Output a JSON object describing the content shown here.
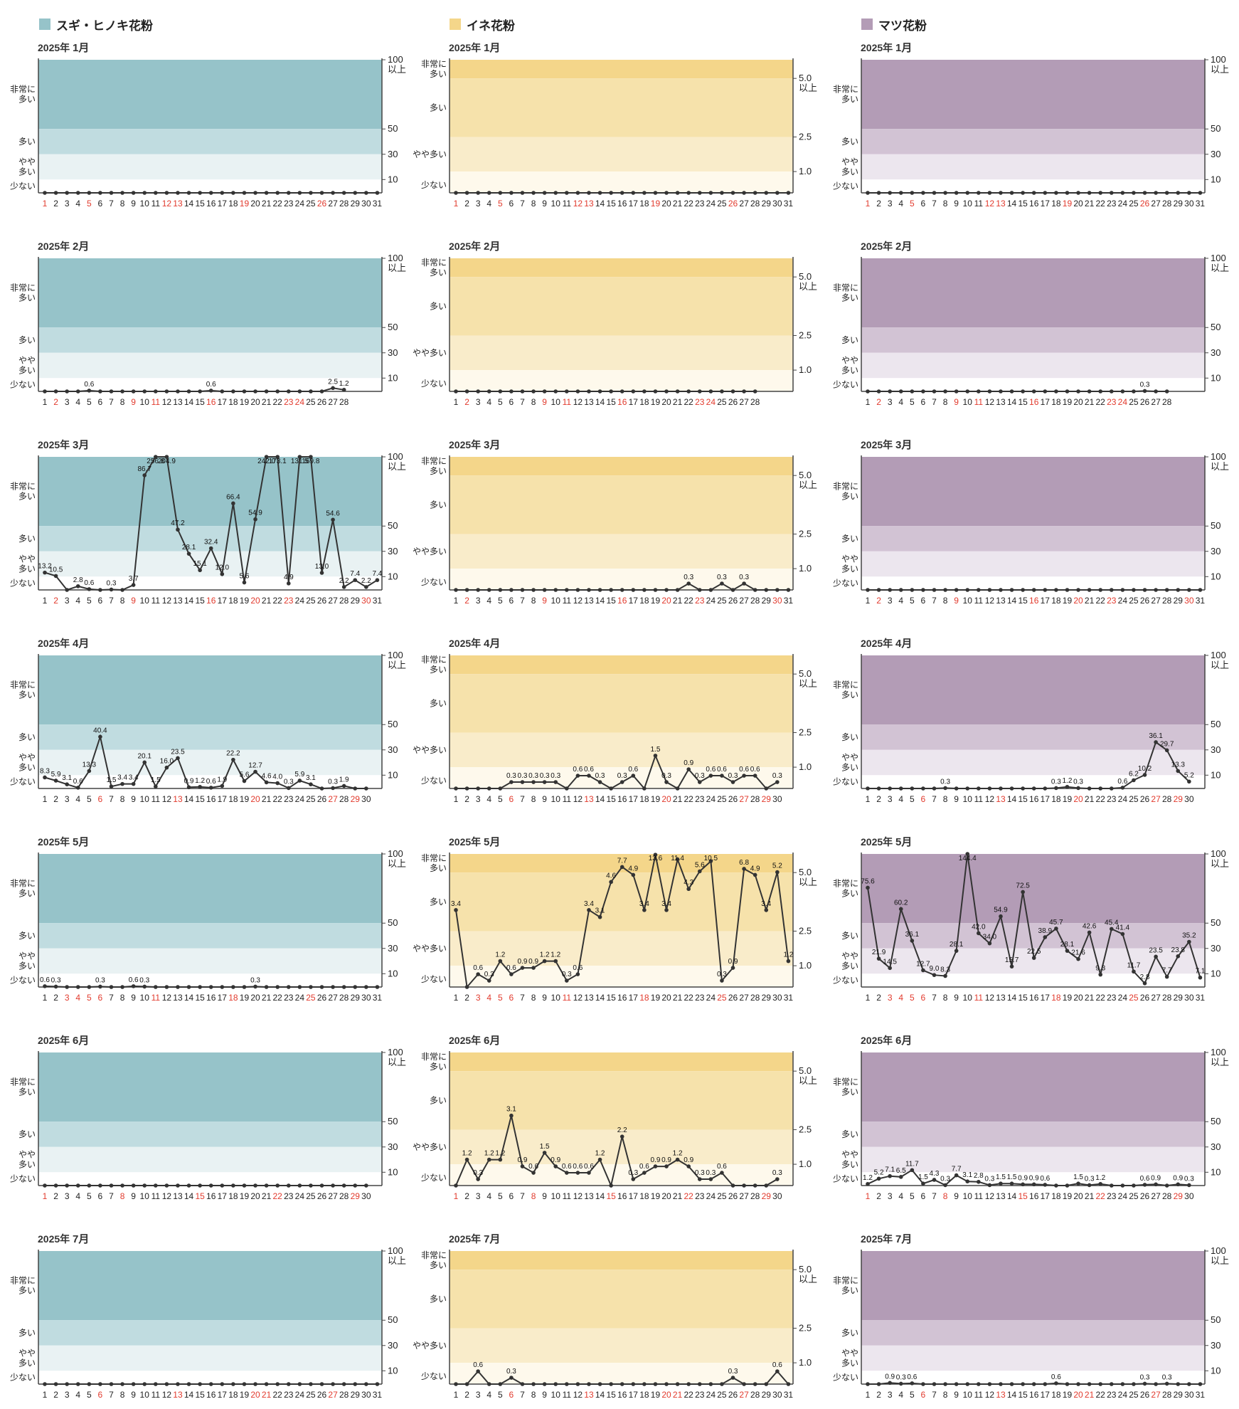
{
  "headers": [
    "スギ・ヒノキ花粉",
    "イネ花粉",
    "マツ花粉"
  ],
  "year_label": "2025年",
  "months": [
    "1月",
    "2月",
    "3月",
    "4月",
    "5月",
    "6月",
    "7月"
  ],
  "levels": {
    "sugi": [
      "非常に\n多い",
      "多い",
      "やや\n多い",
      "少ない"
    ],
    "ine": [
      "非常に\n多い",
      "多い",
      "やや多い",
      "少ない"
    ],
    "matsu": [
      "非常に\n多い",
      "多い",
      "やや\n多い",
      "少ない"
    ]
  },
  "right_ticks": {
    "sugi": [
      {
        "v": 100,
        "t": "100\n以上"
      },
      {
        "v": 50,
        "t": "50"
      },
      {
        "v": 30,
        "t": "30"
      },
      {
        "v": 10,
        "t": "10"
      }
    ],
    "ine": [
      {
        "v": 5.0,
        "t": "5.0\n以上"
      },
      {
        "v": 2.5,
        "t": "2.5"
      },
      {
        "v": 1.0,
        "t": "1.0"
      }
    ],
    "matsu": [
      {
        "v": 100,
        "t": "100\n以上"
      },
      {
        "v": 50,
        "t": "50"
      },
      {
        "v": 30,
        "t": "30"
      },
      {
        "v": 10,
        "t": "10"
      }
    ]
  },
  "colors": {
    "sugi": [
      "#96c3c9",
      "#c0dce0",
      "#e9f2f3",
      "#ffffff"
    ],
    "ine": [
      "#f4d68a",
      "#f6e2ab",
      "#f9ecca",
      "#fef9ec"
    ],
    "matsu": [
      "#b39cb6",
      "#d2c3d4",
      "#ece6ee",
      "#ffffff"
    ],
    "holiday": "#e23b2e",
    "line": "#333333"
  },
  "red_days": {
    "1": [
      1,
      5,
      12,
      13,
      19,
      26
    ],
    "2": [
      2,
      9,
      11,
      16,
      23,
      24
    ],
    "3": [
      2,
      9,
      16,
      20,
      23,
      30
    ],
    "4": [
      6,
      13,
      20,
      27,
      29
    ],
    "5": [
      3,
      4,
      5,
      6,
      11,
      18,
      25
    ],
    "6": [
      1,
      8,
      15,
      22,
      29
    ],
    "7": [
      6,
      13,
      20,
      21,
      27
    ]
  },
  "chart_data": [
    {
      "type": "line",
      "series": "スギ・ヒノキ花粉",
      "month": "1月",
      "days": 31,
      "values": [
        0,
        0,
        0,
        0,
        0,
        0,
        0,
        0,
        0,
        0,
        0,
        0,
        0,
        0,
        0,
        0,
        0,
        0,
        0,
        0,
        0,
        0,
        0,
        0,
        0,
        0,
        0,
        0,
        0,
        0,
        0
      ]
    },
    {
      "type": "line",
      "series": "スギ・ヒノキ花粉",
      "month": "2月",
      "days": 28,
      "values": [
        0,
        0,
        0,
        0,
        0.6,
        0,
        0,
        0,
        0,
        0,
        0,
        0,
        0,
        0,
        0,
        0.6,
        0,
        0,
        0,
        0,
        0,
        0,
        0,
        0,
        0,
        0,
        2.5,
        1.2
      ]
    },
    {
      "type": "line",
      "series": "スギ・ヒノキ花粉",
      "month": "3月",
      "days": 31,
      "values": [
        13.2,
        10.5,
        0,
        2.8,
        0.6,
        0,
        0.3,
        0,
        3.7,
        86.7,
        256.8,
        204.9,
        47.2,
        28.1,
        15.1,
        32.4,
        12.0,
        66.4,
        5.6,
        54.9,
        242.0,
        173.1,
        4.9,
        131.5,
        169.8,
        13.0,
        54.6,
        2.2,
        7.4,
        2.2,
        7.4
      ]
    },
    {
      "type": "line",
      "series": "スギ・ヒノキ花粉",
      "month": "4月",
      "days": 30,
      "values": [
        8.3,
        5.9,
        3.1,
        0.6,
        13.3,
        40.4,
        1.5,
        3.4,
        3.4,
        20.1,
        1.5,
        16.0,
        23.5,
        0.9,
        1.2,
        0.6,
        1.9,
        22.2,
        5.6,
        12.7,
        4.6,
        4.0,
        0.3,
        5.9,
        3.1,
        0,
        0.3,
        1.9,
        0,
        0
      ]
    },
    {
      "type": "line",
      "series": "スギ・ヒノキ花粉",
      "month": "5月",
      "days": 31,
      "values": [
        0.6,
        0.3,
        0,
        0,
        0,
        0.3,
        0,
        0,
        0.6,
        0.3,
        0,
        0,
        0,
        0,
        0,
        0,
        0,
        0,
        0,
        0.3,
        0,
        0,
        0,
        0,
        0,
        0,
        0,
        0,
        0,
        0,
        0
      ]
    },
    {
      "type": "line",
      "series": "スギ・ヒノキ花粉",
      "month": "6月",
      "days": 30,
      "values": [
        0,
        0,
        0,
        0,
        0,
        0,
        0,
        0,
        0,
        0,
        0,
        0,
        0,
        0,
        0,
        0,
        0,
        0,
        0,
        0,
        0,
        0,
        0,
        0,
        0,
        0,
        0,
        0,
        0,
        0
      ]
    },
    {
      "type": "line",
      "series": "スギ・ヒノキ花粉",
      "month": "7月",
      "days": 31,
      "values": [
        0,
        0,
        0,
        0,
        0,
        0,
        0,
        0,
        0,
        0,
        0,
        0,
        0,
        0,
        0,
        0,
        0,
        0,
        0,
        0,
        0,
        0,
        0,
        0,
        0,
        0,
        0,
        0,
        0,
        0,
        0
      ]
    },
    {
      "type": "line",
      "series": "イネ花粉",
      "month": "1月",
      "days": 31,
      "values": [
        0,
        0,
        0,
        0,
        0,
        0,
        0,
        0,
        0,
        0,
        0,
        0,
        0,
        0,
        0,
        0,
        0,
        0,
        0,
        0,
        0,
        0,
        0,
        0,
        0,
        0,
        0,
        0,
        0,
        0,
        0
      ]
    },
    {
      "type": "line",
      "series": "イネ花粉",
      "month": "2月",
      "days": 28,
      "values": [
        0,
        0,
        0,
        0,
        0,
        0,
        0,
        0,
        0,
        0,
        0,
        0,
        0,
        0,
        0,
        0,
        0,
        0,
        0,
        0,
        0,
        0,
        0,
        0,
        0,
        0,
        0,
        0
      ]
    },
    {
      "type": "line",
      "series": "イネ花粉",
      "month": "3月",
      "days": 31,
      "values": [
        0,
        0,
        0,
        0,
        0,
        0,
        0,
        0,
        0,
        0,
        0,
        0,
        0,
        0,
        0,
        0,
        0,
        0,
        0,
        0,
        0,
        0.3,
        0,
        0,
        0.3,
        0,
        0.3,
        0,
        0,
        0,
        0
      ]
    },
    {
      "type": "line",
      "series": "イネ花粉",
      "month": "4月",
      "days": 30,
      "values": [
        0,
        0,
        0,
        0,
        0,
        0.3,
        0.3,
        0.3,
        0.3,
        0.3,
        0,
        0.6,
        0.6,
        0.3,
        0,
        0.3,
        0.6,
        0,
        1.5,
        0.3,
        0,
        0.9,
        0.3,
        0.6,
        0.6,
        0.3,
        0.6,
        0.6,
        0,
        0.3
      ]
    },
    {
      "type": "line",
      "series": "イネ花粉",
      "month": "5月",
      "days": 31,
      "values": [
        3.4,
        0,
        0.6,
        0.3,
        1.2,
        0.6,
        0.9,
        0.9,
        1.2,
        1.2,
        0.3,
        0.6,
        3.4,
        3.1,
        4.6,
        7.7,
        4.9,
        3.4,
        13.6,
        3.4,
        11.4,
        4.3,
        5.6,
        10.5,
        0.3,
        0.9,
        6.8,
        4.9,
        3.4,
        5.2,
        1.2
      ]
    },
    {
      "type": "line",
      "series": "イネ花粉",
      "month": "6月",
      "days": 30,
      "values": [
        0,
        1.2,
        0.3,
        1.2,
        1.2,
        3.1,
        0.9,
        0.6,
        1.5,
        0.9,
        0.6,
        0.6,
        0.6,
        1.2,
        0,
        2.2,
        0.3,
        0.6,
        0.9,
        0.9,
        1.2,
        0.9,
        0.3,
        0.3,
        0.6,
        0,
        0,
        0,
        0,
        0.3
      ]
    },
    {
      "type": "line",
      "series": "イネ花粉",
      "month": "7月",
      "days": 31,
      "values": [
        0,
        0,
        0.6,
        0,
        0,
        0.3,
        0,
        0,
        0,
        0,
        0,
        0,
        0,
        0,
        0,
        0,
        0,
        0,
        0,
        0,
        0,
        0,
        0,
        0,
        0,
        0.3,
        0,
        0,
        0,
        0.6,
        0
      ]
    },
    {
      "type": "line",
      "series": "マツ花粉",
      "month": "1月",
      "days": 31,
      "values": [
        0,
        0,
        0,
        0,
        0,
        0,
        0,
        0,
        0,
        0,
        0,
        0,
        0,
        0,
        0,
        0,
        0,
        0,
        0,
        0,
        0,
        0,
        0,
        0,
        0,
        0,
        0,
        0,
        0,
        0,
        0
      ]
    },
    {
      "type": "line",
      "series": "マツ花粉",
      "month": "2月",
      "days": 28,
      "values": [
        0,
        0,
        0,
        0,
        0,
        0,
        0,
        0,
        0,
        0,
        0,
        0,
        0,
        0,
        0,
        0,
        0,
        0,
        0,
        0,
        0,
        0,
        0,
        0,
        0,
        0.3,
        0,
        0
      ]
    },
    {
      "type": "line",
      "series": "マツ花粉",
      "month": "3月",
      "days": 31,
      "values": [
        0,
        0,
        0,
        0,
        0,
        0,
        0,
        0,
        0,
        0,
        0,
        0,
        0,
        0,
        0,
        0,
        0,
        0,
        0,
        0,
        0,
        0,
        0,
        0,
        0,
        0,
        0,
        0,
        0,
        0,
        0
      ]
    },
    {
      "type": "line",
      "series": "マツ花粉",
      "month": "4月",
      "days": 30,
      "values": [
        0,
        0,
        0,
        0,
        0,
        0,
        0,
        0.3,
        0,
        0,
        0,
        0,
        0,
        0,
        0,
        0,
        0,
        0.3,
        1.2,
        0.3,
        0,
        0,
        0,
        0.6,
        6.2,
        10.2,
        36.1,
        29.7,
        13.3,
        5.2
      ]
    },
    {
      "type": "line",
      "series": "マツ花粉",
      "month": "5月",
      "days": 31,
      "values": [
        75.6,
        21.9,
        14.5,
        60.2,
        36.1,
        12.7,
        9.0,
        8.3,
        28.1,
        144.4,
        42.0,
        34.0,
        54.9,
        15.7,
        72.5,
        22.5,
        38.9,
        45.7,
        28.1,
        21.6,
        42.6,
        9.3,
        45.4,
        41.4,
        11.7,
        2.8,
        23.5,
        7.7,
        23.8,
        35.2,
        7.1
      ]
    },
    {
      "type": "line",
      "series": "マツ花粉",
      "month": "6月",
      "days": 30,
      "values": [
        1.2,
        5.2,
        7.1,
        6.5,
        11.7,
        1.5,
        4.3,
        0.3,
        7.7,
        3.1,
        2.8,
        0.3,
        1.5,
        1.5,
        0.9,
        0.9,
        0.6,
        0,
        0,
        1.5,
        0.3,
        1.2,
        0,
        0,
        0,
        0.6,
        0.9,
        0,
        0.9,
        0.3
      ]
    },
    {
      "type": "line",
      "series": "マツ花粉",
      "month": "7月",
      "days": 31,
      "values": [
        0,
        0,
        0.9,
        0.3,
        0.6,
        0,
        0,
        0,
        0,
        0,
        0,
        0,
        0,
        0,
        0,
        0,
        0,
        0.6,
        0,
        0,
        0,
        0,
        0,
        0,
        0,
        0.3,
        0,
        0.3,
        0,
        0,
        0
      ]
    }
  ]
}
